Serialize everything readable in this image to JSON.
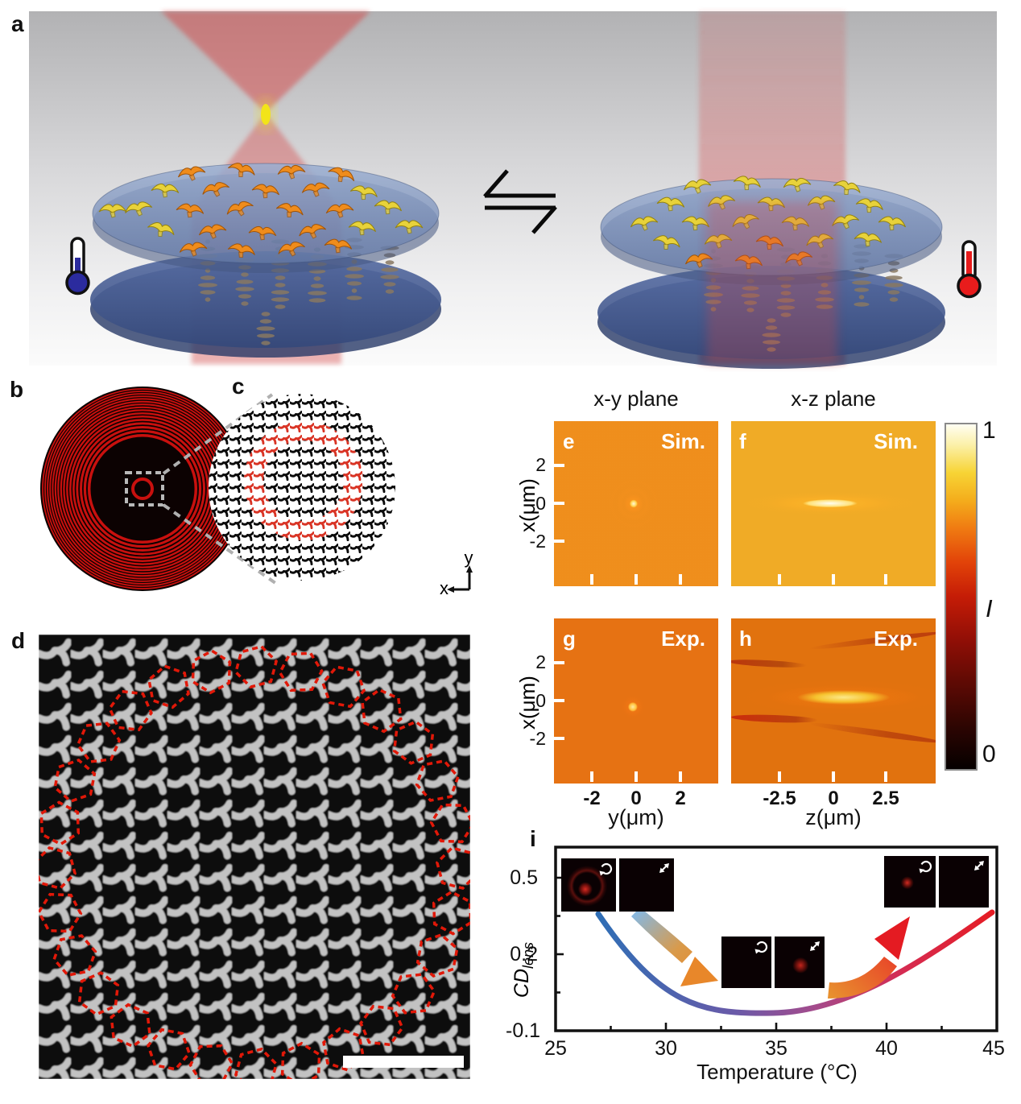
{
  "panels": {
    "a": {
      "label": "a"
    },
    "b": {
      "label": "b"
    },
    "c": {
      "label": "c",
      "axis_x": "x",
      "axis_y": "y"
    },
    "d": {
      "label": "d"
    },
    "e": {
      "label": "e",
      "tag": "Sim."
    },
    "f": {
      "label": "f",
      "tag": "Sim."
    },
    "g": {
      "label": "g",
      "tag": "Exp."
    },
    "h": {
      "label": "h",
      "tag": "Exp."
    },
    "i": {
      "label": "i"
    }
  },
  "column_titles": {
    "xy": "x-y plane",
    "xz": "x-z plane"
  },
  "field_axes": {
    "row_label": "x(μm)",
    "row_ticks": [
      "2",
      "0",
      "-2"
    ],
    "g_label": "y(μm)",
    "g_ticks": [
      "-2",
      "0",
      "2"
    ],
    "h_label": "z(μm)",
    "h_ticks": [
      "-2.5",
      "0",
      "2.5"
    ]
  },
  "colorbar": {
    "max": "1",
    "min": "0",
    "label": "I"
  },
  "chart_i": {
    "ylabel_main": "CD",
    "ylabel_sub": "lens",
    "xlabel": "Temperature (°C)",
    "y_ticks": [
      "0.5",
      "0.2",
      "-0.1"
    ],
    "x_ticks": [
      "25",
      "30",
      "35",
      "40",
      "45"
    ]
  },
  "icons": {
    "thermometer_cold": "blue-thermometer-icon",
    "thermometer_hot": "red-thermometer-icon",
    "equilibrium": "equilibrium-harpoon-arrows-icon",
    "inset_polarizations": [
      "ccw-circular-arrow-icon",
      "diagonal-double-arrow-icon"
    ]
  },
  "chart_data": {
    "type": "line",
    "title": "",
    "xlabel": "Temperature (°C)",
    "ylabel": "CD_lens",
    "xlim": [
      25,
      45
    ],
    "ylim": [
      -0.1,
      0.55
    ],
    "x_ticks": [
      25,
      30,
      35,
      40,
      45
    ],
    "y_ticks": [
      0.5,
      0.2,
      -0.1
    ],
    "grid": false,
    "legend": "none",
    "series": [
      {
        "name": "CD_lens vs temperature",
        "x": [
          27,
          28,
          29,
          30,
          31,
          32,
          33,
          34,
          35,
          36,
          37,
          38,
          39,
          40,
          41,
          42,
          43,
          44,
          45
        ],
        "y": [
          0.36,
          0.28,
          0.21,
          0.14,
          0.08,
          0.03,
          -0.01,
          -0.03,
          -0.04,
          -0.03,
          -0.01,
          0.02,
          0.06,
          0.1,
          0.15,
          0.21,
          0.26,
          0.31,
          0.36
        ],
        "style": "thick smooth curve",
        "color_gradient": [
          "#2f6eb5",
          "#8a4f9e",
          "#d62b50",
          "#e51c24"
        ]
      }
    ],
    "annotations": [
      {
        "type": "inset-image-pair",
        "position": "upper-left (~27-30 °C)",
        "icons": [
          "ccw-circular-arrow",
          "diagonal-double-arrow"
        ],
        "content": "left image: red focal ring+spot; right image: dark"
      },
      {
        "type": "inset-image-pair",
        "position": "center (~35 °C)",
        "icons": [
          "ccw-circular-arrow",
          "diagonal-double-arrow"
        ],
        "content": "left image: dark; right image: red focal spot"
      },
      {
        "type": "inset-image-pair",
        "position": "upper-right (~41-44 °C)",
        "icons": [
          "ccw-circular-arrow",
          "diagonal-double-arrow"
        ],
        "content": "left image: red focal spot; right image: dark"
      },
      {
        "type": "gradient-arrow",
        "direction": "down-right",
        "colors": [
          "#85b8e2",
          "#e8872a"
        ]
      },
      {
        "type": "gradient-arrow",
        "direction": "up-right",
        "colors": [
          "#e8912e",
          "#e41b22"
        ]
      }
    ]
  }
}
